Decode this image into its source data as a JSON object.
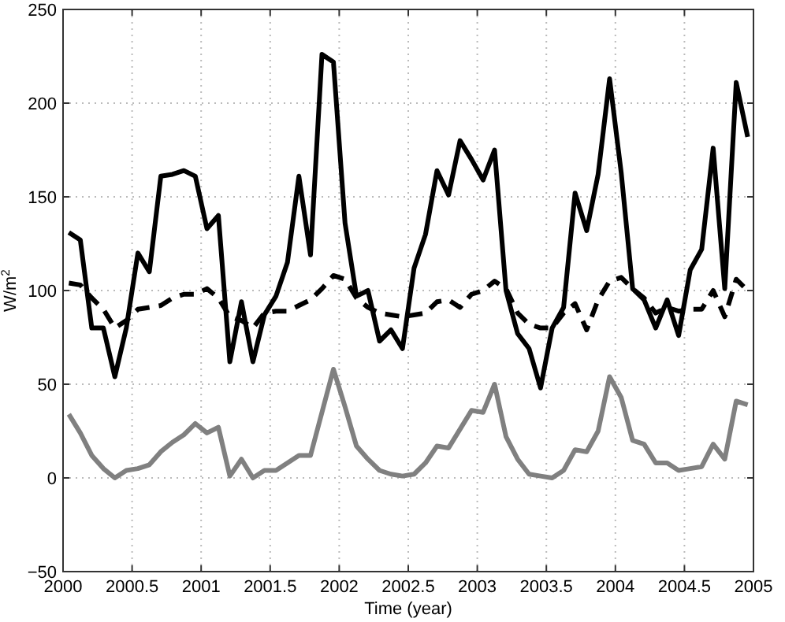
{
  "chart_data": {
    "type": "line",
    "xlabel": "Time (year)",
    "ylabel": "W/m$^{2}$",
    "x": [
      2000.042,
      2000.125,
      2000.208,
      2000.292,
      2000.375,
      2000.458,
      2000.542,
      2000.625,
      2000.708,
      2000.792,
      2000.875,
      2000.958,
      2001.042,
      2001.125,
      2001.208,
      2001.292,
      2001.375,
      2001.458,
      2001.542,
      2001.625,
      2001.708,
      2001.792,
      2001.875,
      2001.958,
      2002.042,
      2002.125,
      2002.208,
      2002.292,
      2002.375,
      2002.458,
      2002.542,
      2002.625,
      2002.708,
      2002.792,
      2002.875,
      2002.958,
      2003.042,
      2003.125,
      2003.208,
      2003.292,
      2003.375,
      2003.458,
      2003.542,
      2003.625,
      2003.708,
      2003.792,
      2003.875,
      2003.958,
      2004.042,
      2004.125,
      2004.208,
      2004.292,
      2004.375,
      2004.458,
      2004.542,
      2004.625,
      2004.708,
      2004.792,
      2004.875,
      2004.958
    ],
    "series": [
      {
        "color": "#000000",
        "line_style": "solid",
        "values": [
          131,
          127,
          80,
          80,
          54,
          80,
          120,
          110,
          161,
          162,
          164,
          161,
          133,
          140,
          62,
          94,
          62,
          87,
          97,
          115,
          161,
          119,
          226,
          222,
          136,
          97,
          100,
          73,
          79,
          69,
          112,
          130,
          164,
          151,
          180,
          170,
          159,
          175,
          100,
          77,
          69,
          48,
          80,
          91,
          152,
          132,
          162,
          213,
          163,
          101,
          95,
          80,
          95,
          76,
          111,
          122,
          176,
          101,
          211,
          182
        ]
      },
      {
        "color": "#000000",
        "line_style": "dashed",
        "values": [
          104,
          103,
          96,
          90,
          80,
          84,
          90,
          91,
          92,
          96,
          98,
          98,
          101,
          96,
          86,
          84,
          80,
          88,
          89,
          89,
          92,
          95,
          101,
          108,
          106,
          96,
          91,
          88,
          87,
          86,
          87,
          88,
          94,
          95,
          91,
          98,
          100,
          105,
          101,
          88,
          82,
          80,
          80,
          88,
          93,
          79,
          95,
          105,
          107,
          101,
          96,
          88,
          91,
          89,
          90,
          90,
          100,
          86,
          106,
          100
        ]
      },
      {
        "color": "#808080",
        "line_style": "solid",
        "values": [
          34,
          24,
          12,
          5,
          0,
          4,
          5,
          7,
          14,
          19,
          23,
          29,
          24,
          27,
          1,
          10,
          0,
          4,
          4,
          8,
          12,
          12,
          35,
          58,
          38,
          17,
          10,
          4,
          2,
          1,
          2,
          8,
          17,
          16,
          26,
          36,
          35,
          50,
          22,
          10,
          2,
          1,
          0,
          4,
          15,
          14,
          25,
          54,
          43,
          20,
          18,
          8,
          8,
          4,
          5,
          6,
          18,
          10,
          41,
          39
        ]
      }
    ],
    "xlim": [
      2000,
      2005
    ],
    "xticks": [
      2000,
      2000.5,
      2001,
      2001.5,
      2002,
      2002.5,
      2003,
      2003.5,
      2004,
      2004.5,
      2005
    ],
    "ylim": [
      -50,
      250
    ],
    "yticks": [
      -50,
      0,
      50,
      100,
      150,
      200,
      250
    ],
    "grid": true
  }
}
